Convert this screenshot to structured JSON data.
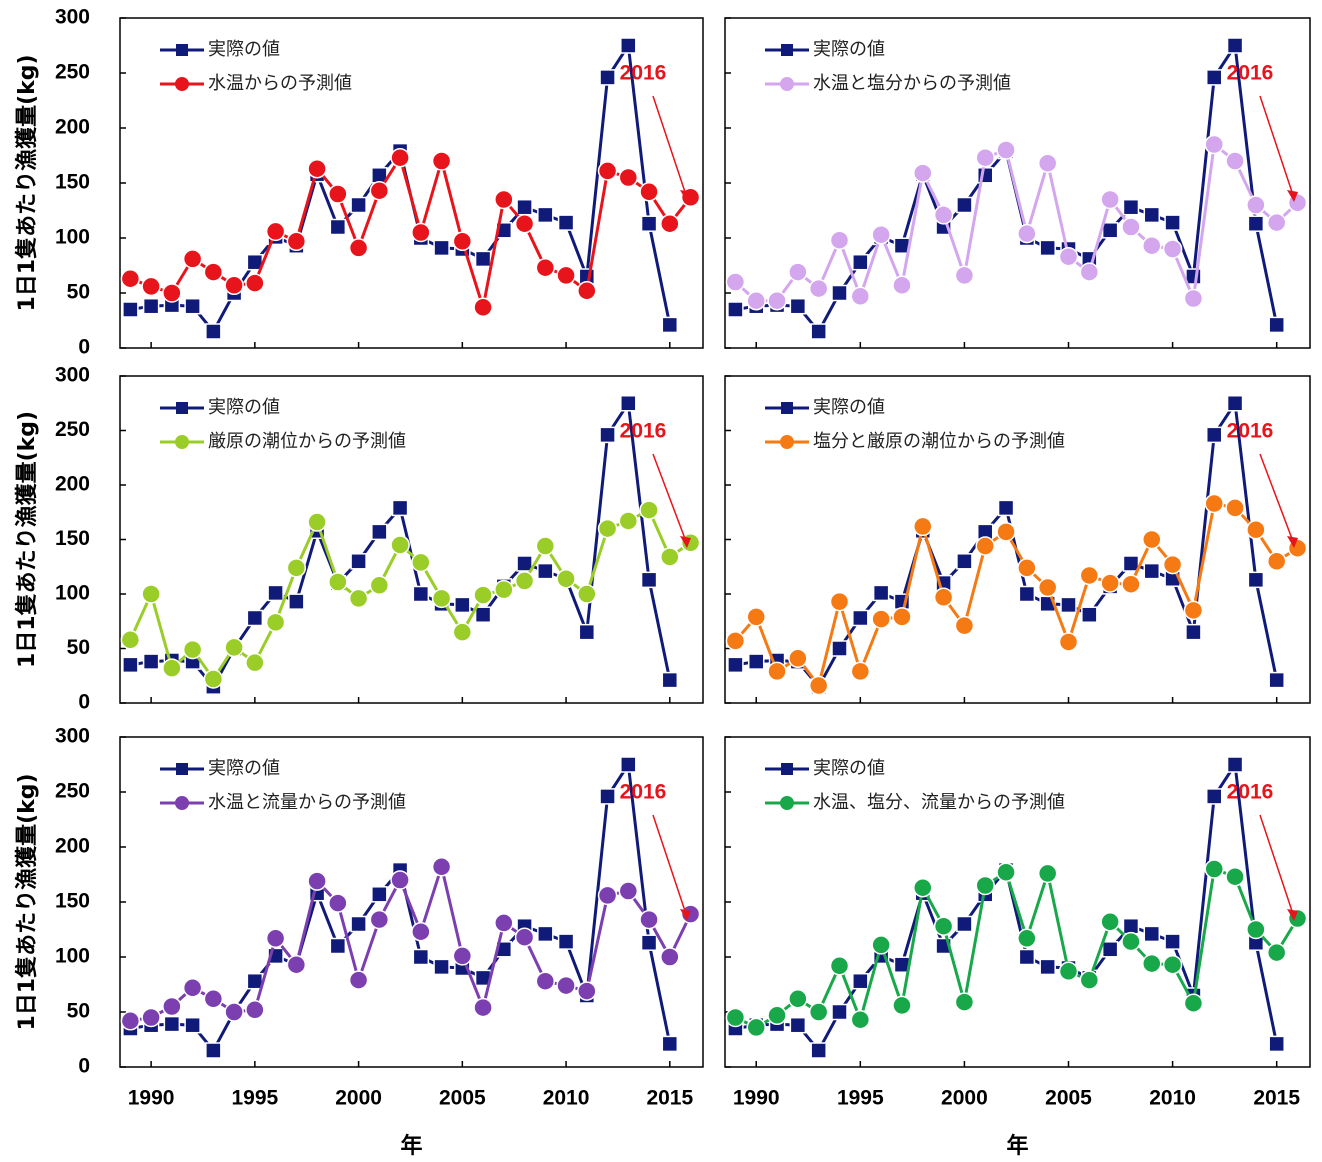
{
  "chart_data": [
    {
      "type": "line",
      "ylabel": "1日1隻あたり漁獲量(kg)",
      "annotation": "2016",
      "x": [
        1989,
        1990,
        1991,
        1992,
        1993,
        1994,
        1995,
        1996,
        1997,
        1998,
        1999,
        2000,
        2001,
        2002,
        2003,
        2004,
        2005,
        2006,
        2007,
        2008,
        2009,
        2010,
        2011,
        2012,
        2013,
        2014,
        2015,
        2016
      ],
      "xlim": [
        1988.5,
        2016.6
      ],
      "xticks": [
        1990,
        1995,
        2000,
        2005,
        2010,
        2015
      ],
      "ylim": [
        0,
        300
      ],
      "yticks": [
        0,
        50,
        100,
        150,
        200,
        250,
        300
      ],
      "series": [
        {
          "name": "実際の値",
          "color": "#101a78",
          "marker": "square",
          "values": [
            35,
            38,
            39,
            38,
            15,
            50,
            78,
            101,
            93,
            158,
            110,
            130,
            157,
            179,
            100,
            91,
            90,
            81,
            107,
            128,
            121,
            114,
            65,
            246,
            275,
            113,
            21,
            null
          ]
        },
        {
          "name": "水温からの予測値",
          "color": "#e8141b",
          "marker": "circle",
          "values": [
            63,
            56,
            50,
            81,
            69,
            57,
            59,
            106,
            97,
            163,
            140,
            91,
            143,
            173,
            105,
            170,
            97,
            37,
            135,
            113,
            73,
            66,
            52,
            161,
            155,
            142,
            113,
            137
          ]
        }
      ]
    },
    {
      "type": "line",
      "annotation": "2016",
      "x": [
        1989,
        1990,
        1991,
        1992,
        1993,
        1994,
        1995,
        1996,
        1997,
        1998,
        1999,
        2000,
        2001,
        2002,
        2003,
        2004,
        2005,
        2006,
        2007,
        2008,
        2009,
        2010,
        2011,
        2012,
        2013,
        2014,
        2015,
        2016
      ],
      "xlim": [
        1988.5,
        2016.6
      ],
      "xticks": [
        1990,
        1995,
        2000,
        2005,
        2010,
        2015
      ],
      "ylim": [
        0,
        300
      ],
      "yticks": [
        0,
        50,
        100,
        150,
        200,
        250,
        300
      ],
      "series": [
        {
          "name": "実際の値",
          "color": "#101a78",
          "marker": "square",
          "values": [
            35,
            38,
            39,
            38,
            15,
            50,
            78,
            101,
            93,
            158,
            110,
            130,
            157,
            179,
            100,
            91,
            90,
            81,
            107,
            128,
            121,
            114,
            65,
            246,
            275,
            113,
            21,
            null
          ]
        },
        {
          "name": "水温と塩分からの予測値",
          "color": "#d3a6ee",
          "marker": "circle",
          "values": [
            60,
            43,
            43,
            69,
            54,
            98,
            47,
            103,
            57,
            159,
            121,
            66,
            173,
            180,
            104,
            168,
            83,
            69,
            135,
            110,
            93,
            90,
            45,
            185,
            170,
            130,
            114,
            132
          ]
        }
      ]
    },
    {
      "type": "line",
      "ylabel": "1日1隻あたり漁獲量(kg)",
      "annotation": "2016",
      "x": [
        1989,
        1990,
        1991,
        1992,
        1993,
        1994,
        1995,
        1996,
        1997,
        1998,
        1999,
        2000,
        2001,
        2002,
        2003,
        2004,
        2005,
        2006,
        2007,
        2008,
        2009,
        2010,
        2011,
        2012,
        2013,
        2014,
        2015,
        2016
      ],
      "xlim": [
        1988.5,
        2016.6
      ],
      "xticks": [
        1990,
        1995,
        2000,
        2005,
        2010,
        2015
      ],
      "ylim": [
        0,
        300
      ],
      "yticks": [
        0,
        50,
        100,
        150,
        200,
        250,
        300
      ],
      "series": [
        {
          "name": "実際の値",
          "color": "#101a78",
          "marker": "square",
          "values": [
            35,
            38,
            39,
            38,
            15,
            50,
            78,
            101,
            93,
            158,
            110,
            130,
            157,
            179,
            100,
            91,
            90,
            81,
            107,
            128,
            121,
            114,
            65,
            246,
            275,
            113,
            21,
            null
          ]
        },
        {
          "name": "厳原の潮位からの予測値",
          "color": "#9acd28",
          "marker": "circle",
          "values": [
            58,
            100,
            32,
            49,
            22,
            51,
            37,
            74,
            124,
            166,
            111,
            96,
            108,
            145,
            129,
            96,
            65,
            99,
            104,
            112,
            144,
            114,
            100,
            160,
            167,
            177,
            134,
            147
          ]
        }
      ]
    },
    {
      "type": "line",
      "annotation": "2016",
      "x": [
        1989,
        1990,
        1991,
        1992,
        1993,
        1994,
        1995,
        1996,
        1997,
        1998,
        1999,
        2000,
        2001,
        2002,
        2003,
        2004,
        2005,
        2006,
        2007,
        2008,
        2009,
        2010,
        2011,
        2012,
        2013,
        2014,
        2015,
        2016
      ],
      "xlim": [
        1988.5,
        2016.6
      ],
      "xticks": [
        1990,
        1995,
        2000,
        2005,
        2010,
        2015
      ],
      "ylim": [
        0,
        300
      ],
      "yticks": [
        0,
        50,
        100,
        150,
        200,
        250,
        300
      ],
      "series": [
        {
          "name": "実際の値",
          "color": "#101a78",
          "marker": "square",
          "values": [
            35,
            38,
            39,
            38,
            15,
            50,
            78,
            101,
            93,
            158,
            110,
            130,
            157,
            179,
            100,
            91,
            90,
            81,
            107,
            128,
            121,
            114,
            65,
            246,
            275,
            113,
            21,
            null
          ]
        },
        {
          "name": "塩分と厳原の潮位からの予測値",
          "color": "#f57a14",
          "marker": "circle",
          "values": [
            57,
            79,
            29,
            41,
            16,
            93,
            29,
            77,
            79,
            162,
            97,
            71,
            144,
            157,
            124,
            106,
            56,
            117,
            110,
            109,
            150,
            127,
            85,
            183,
            179,
            159,
            130,
            142
          ]
        }
      ]
    },
    {
      "type": "line",
      "ylabel": "1日1隻あたり漁獲量(kg)",
      "xlabel": "年",
      "annotation": "2016",
      "x": [
        1989,
        1990,
        1991,
        1992,
        1993,
        1994,
        1995,
        1996,
        1997,
        1998,
        1999,
        2000,
        2001,
        2002,
        2003,
        2004,
        2005,
        2006,
        2007,
        2008,
        2009,
        2010,
        2011,
        2012,
        2013,
        2014,
        2015,
        2016
      ],
      "xlim": [
        1988.5,
        2016.6
      ],
      "xticks": [
        1990,
        1995,
        2000,
        2005,
        2010,
        2015
      ],
      "ylim": [
        0,
        300
      ],
      "yticks": [
        0,
        50,
        100,
        150,
        200,
        250,
        300
      ],
      "series": [
        {
          "name": "実際の値",
          "color": "#101a78",
          "marker": "square",
          "values": [
            35,
            38,
            39,
            38,
            15,
            50,
            78,
            101,
            93,
            158,
            110,
            130,
            157,
            179,
            100,
            91,
            90,
            81,
            107,
            128,
            121,
            114,
            65,
            246,
            275,
            113,
            21,
            null
          ]
        },
        {
          "name": "水温と流量からの予測値",
          "color": "#7b3fb0",
          "marker": "circle",
          "values": [
            42,
            45,
            55,
            72,
            62,
            50,
            52,
            117,
            93,
            169,
            149,
            79,
            134,
            170,
            123,
            182,
            101,
            54,
            131,
            118,
            78,
            74,
            69,
            156,
            160,
            134,
            100,
            139
          ]
        }
      ]
    },
    {
      "type": "line",
      "xlabel": "年",
      "annotation": "2016",
      "x": [
        1989,
        1990,
        1991,
        1992,
        1993,
        1994,
        1995,
        1996,
        1997,
        1998,
        1999,
        2000,
        2001,
        2002,
        2003,
        2004,
        2005,
        2006,
        2007,
        2008,
        2009,
        2010,
        2011,
        2012,
        2013,
        2014,
        2015,
        2016
      ],
      "xlim": [
        1988.5,
        2016.6
      ],
      "xticks": [
        1990,
        1995,
        2000,
        2005,
        2010,
        2015
      ],
      "ylim": [
        0,
        300
      ],
      "yticks": [
        0,
        50,
        100,
        150,
        200,
        250,
        300
      ],
      "series": [
        {
          "name": "実際の値",
          "color": "#101a78",
          "marker": "square",
          "values": [
            35,
            38,
            39,
            38,
            15,
            50,
            78,
            101,
            93,
            158,
            110,
            130,
            157,
            179,
            100,
            91,
            90,
            81,
            107,
            128,
            121,
            114,
            65,
            246,
            275,
            113,
            21,
            null
          ]
        },
        {
          "name": "水温、塩分、流量からの予測値",
          "color": "#18a84a",
          "marker": "circle",
          "values": [
            45,
            36,
            47,
            62,
            50,
            92,
            43,
            111,
            56,
            163,
            128,
            59,
            165,
            177,
            117,
            176,
            87,
            79,
            132,
            114,
            94,
            93,
            58,
            180,
            173,
            125,
            104,
            135
          ]
        }
      ]
    }
  ]
}
